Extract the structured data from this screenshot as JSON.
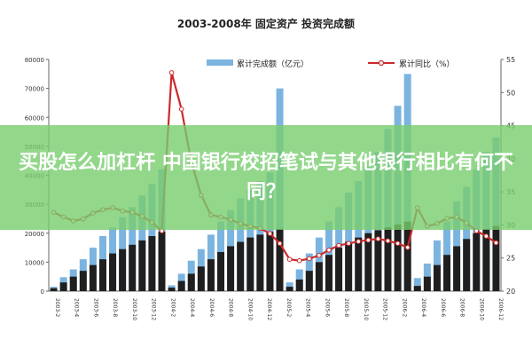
{
  "chart_data": {
    "type": "bar",
    "title": "2003-2008年 固定资产 投资完成额",
    "left_axis": {
      "ylim": [
        0,
        80000
      ],
      "ticks": [
        "0",
        "10000",
        "20000",
        "30000",
        "40000",
        "50000",
        "60000",
        "70000",
        "80000"
      ]
    },
    "right_axis": {
      "ylim": [
        20,
        55
      ],
      "ticks": [
        "20",
        "25",
        "30",
        "35",
        "40",
        "45",
        "50",
        "55"
      ]
    },
    "x_tick_labels": [
      "2003-2",
      "2003-4",
      "2003-6",
      "2003-8",
      "2003-10",
      "2003-12",
      "2004-2",
      "2004-4",
      "2004-6",
      "2004-8",
      "2004-10",
      "2004-12",
      "2005-2",
      "2005-4",
      "2005-6",
      "2005-8",
      "2005-10",
      "2005-12",
      "2006-2",
      "2006-4",
      "2006-6",
      "2006-8",
      "2006-10",
      "2006-12"
    ],
    "legend": {
      "placement": "top",
      "bar_label": "累计完成额（亿元）",
      "line_label": "累计同比（%）"
    },
    "series": [
      {
        "kind": "bar",
        "color": "#7cb4e0",
        "values": [
          1500,
          4800,
          7500,
          11000,
          15000,
          19000,
          22000,
          25500,
          29000,
          33000,
          37000,
          42000,
          2000,
          6000,
          10500,
          14500,
          19500,
          24000,
          28000,
          32000,
          35000,
          38000,
          41000,
          70000,
          3000,
          7500,
          13000,
          18500,
          24000,
          29000,
          34000,
          38000,
          43000,
          48000,
          56000,
          64000,
          75000,
          4500,
          9500,
          17500,
          24000,
          31000,
          36000,
          42000,
          48000,
          53000
        ]
      },
      {
        "kind": "bar",
        "color": "#1f1f1f",
        "values": [
          1000,
          3000,
          5000,
          7000,
          9000,
          11000,
          13000,
          14500,
          16000,
          17500,
          19000,
          20500,
          1200,
          3500,
          6000,
          8500,
          11000,
          13500,
          15500,
          17000,
          18500,
          19500,
          20500,
          21500,
          1500,
          4000,
          7000,
          10000,
          12500,
          15000,
          17000,
          18500,
          20000,
          21000,
          22000,
          23000,
          24000,
          1800,
          5000,
          9000,
          12500,
          15500,
          18000,
          20000,
          21500,
          22500
        ]
      },
      {
        "kind": "line",
        "color": "#cc2a2a",
        "values": [
          31.9,
          31.2,
          30.6,
          30.9,
          31.8,
          32.3,
          32.6,
          32.1,
          31.9,
          31.3,
          30.4,
          29.1,
          53.0,
          47.5,
          39.5,
          34.5,
          31.5,
          31.2,
          30.8,
          30.2,
          29.8,
          29.5,
          28.7,
          27.2,
          24.8,
          24.6,
          24.9,
          25.4,
          26.2,
          26.9,
          27.2,
          27.5,
          27.7,
          27.9,
          27.6,
          27.2,
          26.6,
          32.6,
          29.8,
          30.2,
          31.0,
          31.2,
          30.3,
          29.1,
          28.3,
          27.3
        ]
      }
    ]
  },
  "banner": {
    "text": "买股怎么加杠杆 中国银行校招笔试与其他银行相比有何不同？"
  }
}
